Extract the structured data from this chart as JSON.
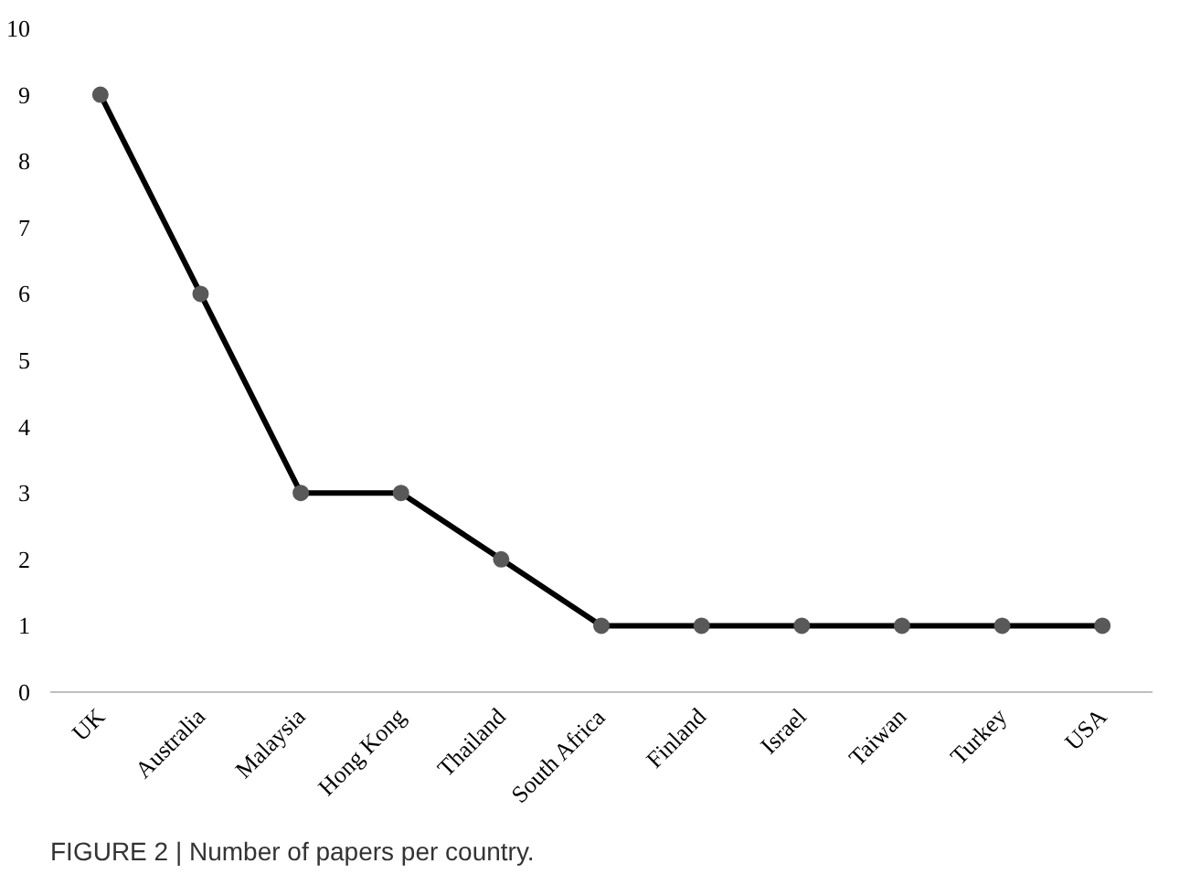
{
  "chart_data": {
    "type": "line",
    "categories": [
      "UK",
      "Australia",
      "Malaysia",
      "Hong Kong",
      "Thailand",
      "South Africa",
      "Finland",
      "Israel",
      "Taiwan",
      "Turkey",
      "USA"
    ],
    "series": [
      {
        "color": "#000000",
        "values": [
          9,
          6,
          3,
          3,
          2,
          1,
          1,
          1,
          1,
          1,
          1
        ]
      }
    ],
    "ylim": [
      0,
      10
    ],
    "yticks": [
      0,
      1,
      2,
      3,
      4,
      5,
      6,
      7,
      8,
      9,
      10
    ],
    "grid": false,
    "marker": "circle",
    "line_style": "solid",
    "annotations": [
      "FIGURE 2 | Number of papers per country."
    ]
  }
}
